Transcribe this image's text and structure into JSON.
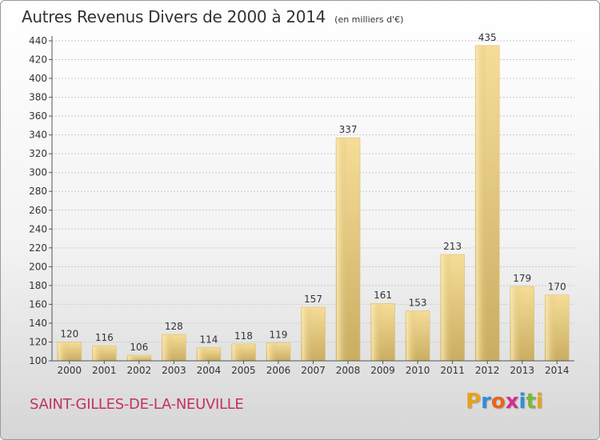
{
  "header": {
    "title": "Autres Revenus Divers de 2000 à 2014",
    "unit": "(en milliers d'€)"
  },
  "footer": {
    "place": "SAINT-GILLES-DE-LA-NEUVILLE",
    "logo": [
      "P",
      "r",
      "o",
      "x",
      "i",
      "t",
      "i"
    ],
    "logo_colors": [
      "#e8a21a",
      "#2e8fd4",
      "#e8641a",
      "#d42e8f",
      "#2e8fd4",
      "#7ab83a",
      "#e8a21a"
    ]
  },
  "chart_data": {
    "type": "bar",
    "categories": [
      "2000",
      "2001",
      "2002",
      "2003",
      "2004",
      "2005",
      "2006",
      "2007",
      "2008",
      "2009",
      "2010",
      "2011",
      "2012",
      "2013",
      "2014"
    ],
    "values": [
      120,
      116,
      106,
      128,
      114,
      118,
      119,
      157,
      337,
      161,
      153,
      213,
      435,
      179,
      170
    ],
    "ylim": [
      100,
      440
    ],
    "yticks": [
      100,
      120,
      140,
      160,
      180,
      200,
      220,
      240,
      260,
      280,
      300,
      320,
      340,
      360,
      380,
      400,
      420,
      440
    ],
    "grid": true,
    "bar_color": "#e8cf86"
  }
}
